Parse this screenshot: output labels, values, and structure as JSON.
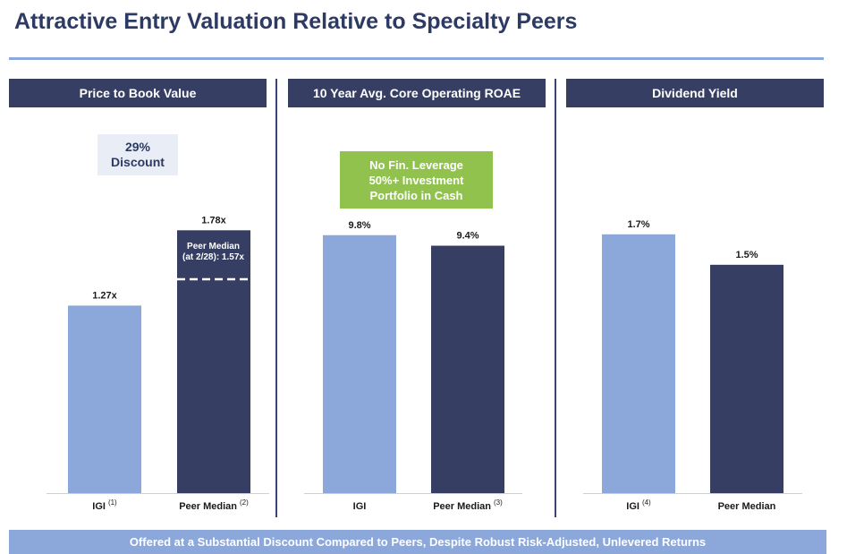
{
  "page": {
    "title": "Attractive Entry Valuation Relative to Specialty Peers",
    "footer": "Offered at a Substantial Discount Compared to Peers, Despite Robust Risk-Adjusted, Unlevered Returns"
  },
  "colors": {
    "navy": "#363f63",
    "light_blue": "#8ca7d9",
    "green": "#92c24e",
    "title": "#2d3a63",
    "callout_bg": "#e9edf6"
  },
  "callouts": {
    "discount_line1": "29%",
    "discount_line2": "Discount",
    "green_line1": "No Fin. Leverage",
    "green_line2": "50%+ Investment",
    "green_line3": "Portfolio in Cash",
    "peer_note_line1": "Peer Median",
    "peer_note_line2": "(at 2/28): 1.57x"
  },
  "chart_data": [
    {
      "type": "bar",
      "title": "Price to Book Value",
      "categories": [
        "IGI",
        "Peer Median"
      ],
      "footnotes": [
        "(1)",
        "(2)"
      ],
      "values": [
        1.27,
        1.78
      ],
      "labels": [
        "1.27x",
        "1.78x"
      ],
      "reference": {
        "value": 1.57
      },
      "ylim": [
        0,
        2.0
      ]
    },
    {
      "type": "bar",
      "title": "10 Year Avg. Core Operating ROAE",
      "categories": [
        "IGI",
        "Peer Median"
      ],
      "footnotes": [
        "",
        "(3)"
      ],
      "values": [
        9.8,
        9.4
      ],
      "labels": [
        "9.8%",
        "9.4%"
      ],
      "ylim": [
        0,
        11.22
      ]
    },
    {
      "type": "bar",
      "title": "Dividend Yield",
      "categories": [
        "IGI",
        "Peer Median"
      ],
      "footnotes": [
        "(4)",
        ""
      ],
      "values": [
        1.7,
        1.5
      ],
      "labels": [
        "1.7%",
        "1.5%"
      ],
      "ylim": [
        0,
        1.94
      ]
    }
  ]
}
